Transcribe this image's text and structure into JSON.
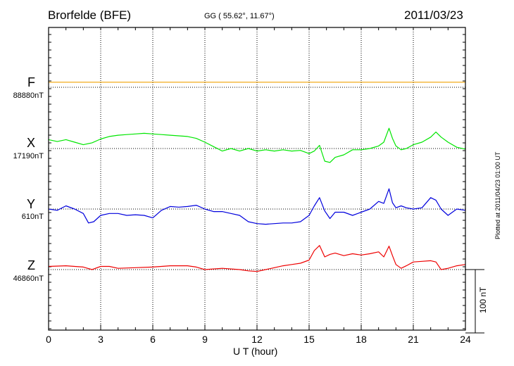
{
  "header": {
    "station": "Brorfelde (BFE)",
    "coords": "GG ( 55.62°,  11.67°)",
    "date": "2011/03/23"
  },
  "plotted_note": "Plotted at 2011/04/23 01:00 UT",
  "scale_label": "100 nT",
  "chart_data": {
    "type": "line",
    "xlabel": "U T (hour)",
    "xlim": [
      0,
      24
    ],
    "xticks": [
      0,
      3,
      6,
      9,
      12,
      15,
      18,
      21,
      24
    ],
    "scale_bar_nT": 100,
    "grid": true,
    "series": [
      {
        "name": "F",
        "baseline_label": "88880nT",
        "color": "#f0a000",
        "baseline_nT": 88880,
        "x": [
          0,
          24
        ],
        "y": [
          88888,
          88888
        ]
      },
      {
        "name": "X",
        "baseline_label": "17190nT",
        "color": "#00e600",
        "baseline_nT": 17190,
        "x": [
          0,
          0.5,
          1.0,
          1.5,
          2.0,
          2.5,
          3.0,
          3.5,
          4.0,
          4.5,
          5.0,
          5.5,
          6.0,
          6.5,
          7.0,
          7.5,
          8.0,
          8.5,
          9.0,
          9.5,
          10.0,
          10.5,
          11.0,
          11.5,
          12.0,
          12.5,
          13.0,
          13.5,
          14.0,
          14.5,
          15.0,
          15.3,
          15.6,
          15.9,
          16.2,
          16.5,
          17.0,
          17.5,
          18.0,
          18.5,
          19.0,
          19.3,
          19.6,
          19.8,
          20.0,
          20.3,
          20.6,
          21.0,
          21.5,
          22.0,
          22.3,
          22.6,
          23.0,
          23.5,
          24.0
        ],
        "y": [
          17204,
          17201,
          17204,
          17200,
          17196,
          17199,
          17205,
          17209,
          17211,
          17212,
          17213,
          17214,
          17213,
          17212,
          17211,
          17210,
          17209,
          17206,
          17200,
          17193,
          17186,
          17190,
          17186,
          17190,
          17186,
          17188,
          17186,
          17188,
          17186,
          17187,
          17182,
          17186,
          17195,
          17170,
          17168,
          17176,
          17180,
          17188,
          17188,
          17190,
          17194,
          17200,
          17222,
          17206,
          17194,
          17188,
          17190,
          17196,
          17200,
          17208,
          17216,
          17208,
          17200,
          17192,
          17189
        ]
      },
      {
        "name": "Y",
        "baseline_label": "610nT",
        "color": "#0000dd",
        "baseline_nT": 610,
        "x": [
          0,
          0.5,
          1.0,
          1.5,
          2.0,
          2.3,
          2.6,
          3.0,
          3.5,
          4.0,
          4.5,
          5.0,
          5.5,
          6.0,
          6.5,
          7.0,
          7.5,
          8.0,
          8.5,
          9.0,
          9.5,
          10.0,
          10.5,
          11.0,
          11.5,
          12.0,
          12.5,
          13.0,
          13.5,
          14.0,
          14.5,
          15.0,
          15.3,
          15.6,
          15.9,
          16.2,
          16.5,
          17.0,
          17.5,
          18.0,
          18.5,
          19.0,
          19.3,
          19.6,
          19.8,
          20.0,
          20.3,
          20.6,
          21.0,
          21.5,
          22.0,
          22.3,
          22.6,
          23.0,
          23.5,
          24.0
        ],
        "y": [
          610,
          608,
          615,
          610,
          603,
          588,
          590,
          600,
          603,
          603,
          600,
          601,
          600,
          596,
          608,
          614,
          613,
          614,
          616,
          610,
          606,
          606,
          603,
          600,
          590,
          587,
          586,
          587,
          588,
          588,
          590,
          600,
          615,
          628,
          607,
          595,
          605,
          605,
          600,
          605,
          610,
          622,
          619,
          642,
          620,
          612,
          615,
          612,
          610,
          612,
          628,
          624,
          610,
          600,
          610,
          608
        ]
      },
      {
        "name": "Z",
        "baseline_label": "46860nT",
        "color": "#ee0000",
        "baseline_nT": 46860,
        "x": [
          0,
          1.0,
          2.0,
          2.5,
          3.0,
          3.5,
          4.0,
          5.0,
          6.0,
          7.0,
          8.0,
          8.5,
          9.0,
          10.0,
          11.0,
          11.5,
          12.0,
          12.5,
          13.0,
          13.5,
          14.0,
          14.5,
          15.0,
          15.3,
          15.6,
          15.9,
          16.2,
          16.5,
          17.0,
          17.5,
          18.0,
          18.5,
          19.0,
          19.3,
          19.6,
          19.8,
          20.0,
          20.3,
          20.6,
          21.0,
          21.5,
          22.0,
          22.3,
          22.6,
          23.0,
          23.5,
          24.0
        ],
        "y": [
          46865,
          46866,
          46864,
          46860,
          46865,
          46865,
          46862,
          46863,
          46864,
          46866,
          46866,
          46864,
          46860,
          46862,
          46860,
          46858,
          46857,
          46860,
          46863,
          46866,
          46868,
          46870,
          46875,
          46890,
          46898,
          46880,
          46884,
          46886,
          46882,
          46885,
          46883,
          46885,
          46888,
          46880,
          46897,
          46882,
          46868,
          46862,
          46866,
          46872,
          46873,
          46874,
          46872,
          46860,
          46862,
          46866,
          46868
        ]
      }
    ]
  }
}
